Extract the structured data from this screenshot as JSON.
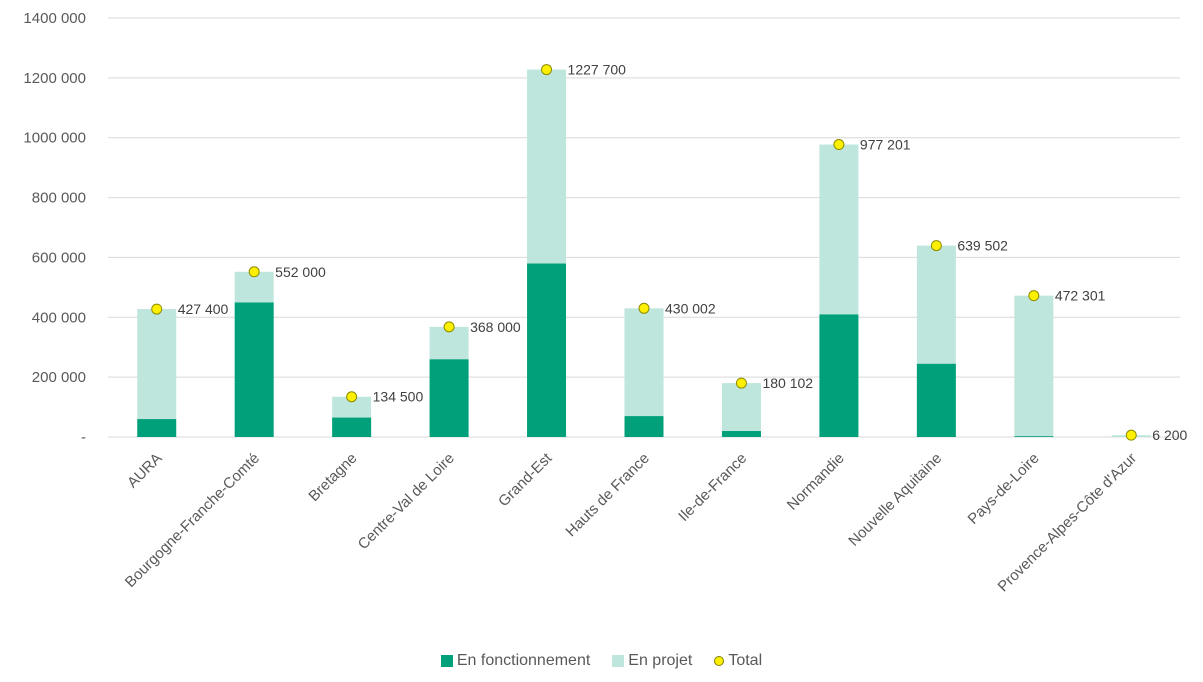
{
  "chart_data": {
    "type": "bar",
    "stacked": true,
    "categories": [
      "AURA",
      "Bourgogne-Franche-Comté",
      "Bretagne",
      "Centre-Val de Loire",
      "Grand-Est",
      "Hauts de France",
      "Ile-de-France",
      "Normandie",
      "Nouvelle Aquitaine",
      "Pays-de-Loire",
      "Provence-Alpes-Côte d'Azur"
    ],
    "series": [
      {
        "name": "En fonctionnement",
        "color": "#00a07a",
        "values": [
          60000,
          450000,
          65000,
          260000,
          580000,
          70000,
          20000,
          410000,
          245000,
          3000,
          0
        ]
      },
      {
        "name": "En projet",
        "color": "#bfe6dc",
        "values": [
          367400,
          102000,
          69500,
          108000,
          647700,
          360002,
          160102,
          567201,
          394502,
          469301,
          6200
        ]
      },
      {
        "name": "Total",
        "color": "#ffef00",
        "marker": "circle",
        "values": [
          427400,
          552000,
          134500,
          368000,
          1227700,
          430002,
          180102,
          977201,
          639502,
          472301,
          6200
        ]
      }
    ],
    "data_labels": [
      "427 400",
      "552 000",
      "134 500",
      "368 000",
      "1227 700",
      "430 002",
      "180 102",
      "977 201",
      "639 502",
      "472 301",
      "6 200"
    ],
    "ylim": [
      0,
      1400000
    ],
    "yticks": [
      0,
      200000,
      400000,
      600000,
      800000,
      1000000,
      1200000,
      1400000
    ],
    "ytick_labels": [
      "-",
      "200 000",
      "400 000",
      "600 000",
      "800 000",
      "1000 000",
      "1200 000",
      "1400 000"
    ],
    "grid": true,
    "legend_position": "bottom"
  },
  "legend": {
    "items": [
      {
        "label": "En fonctionnement",
        "color": "#00a07a",
        "shape": "square"
      },
      {
        "label": "En projet",
        "color": "#bfe6dc",
        "shape": "square"
      },
      {
        "label": "Total",
        "color": "#ffef00",
        "shape": "circle"
      }
    ]
  }
}
